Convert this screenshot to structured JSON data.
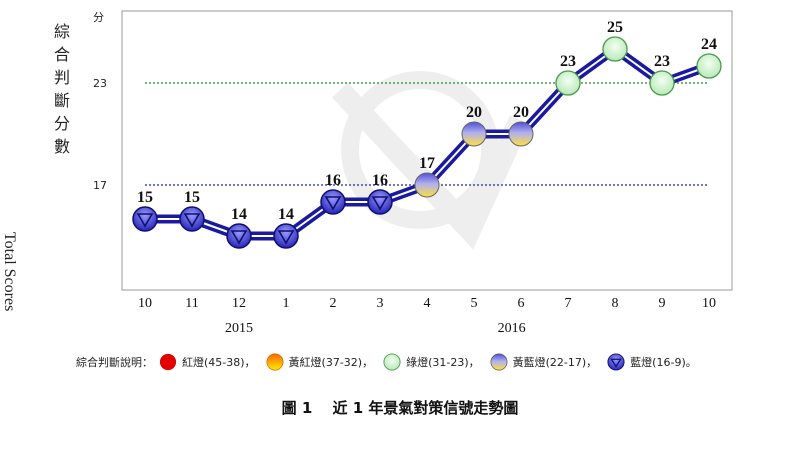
{
  "ylabel_cn": "綜合判斷分數",
  "ylabel_en": "Total Scores",
  "y_unit": "分",
  "caption": "圖 1　 近 1 年景氣對策信號走勢圖",
  "legend": {
    "title": "綜合判斷說明：",
    "items": [
      {
        "label": "紅燈(45-38)，",
        "icon": "red-light",
        "color": "#e00000"
      },
      {
        "label": "黃紅燈(37-32)，",
        "icon": "yellow-red-light",
        "color": "#ff8800"
      },
      {
        "label": "綠燈(31-23)，",
        "icon": "green-light",
        "color": "#c8f0c8"
      },
      {
        "label": "黃藍燈(22-17)，",
        "icon": "yellow-blue-light",
        "color": "#ffe066"
      },
      {
        "label": "藍燈(16-9)。",
        "icon": "blue-light",
        "color": "#2a2ad8"
      }
    ]
  },
  "chart_data": {
    "type": "line",
    "x": [
      "10",
      "11",
      "12",
      "1",
      "2",
      "3",
      "4",
      "5",
      "6",
      "7",
      "8",
      "9",
      "10"
    ],
    "year_labels": [
      {
        "label": "2015",
        "center_index": 2
      },
      {
        "label": "2016",
        "center_index": 7.8
      }
    ],
    "values": [
      15,
      15,
      14,
      14,
      16,
      16,
      17,
      20,
      20,
      23,
      25,
      23,
      24
    ],
    "signals": [
      "blue",
      "blue",
      "blue",
      "blue",
      "blue",
      "blue",
      "yellow-blue",
      "yellow-blue",
      "yellow-blue",
      "green",
      "green",
      "green",
      "green"
    ],
    "y_ticks": [
      17,
      23
    ],
    "threshold_lines": [
      17,
      23
    ],
    "ylim": [
      10,
      27
    ],
    "line_color": "#1a1aa0",
    "colors": {
      "blue": "#2a2ad8",
      "yellow-blue": "#ffe066",
      "green": "#c8f0c8",
      "frame": "#999999",
      "grid17": "#2222aa",
      "grid23": "#228822"
    }
  }
}
